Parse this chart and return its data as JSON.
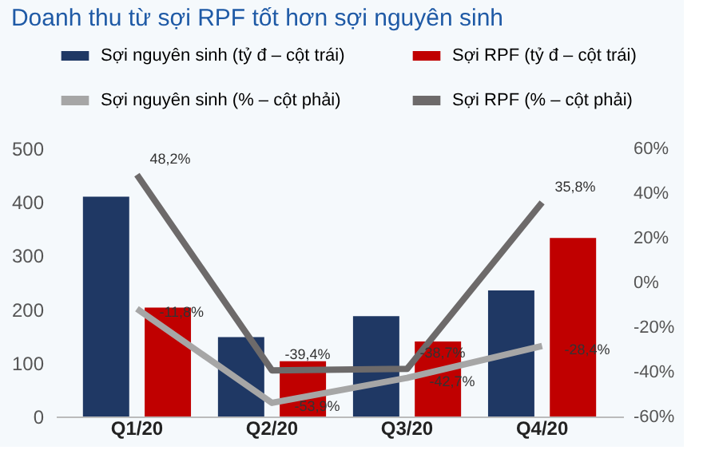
{
  "chart_data": {
    "type": "bar",
    "title": "Doanh thu từ sợi RPF tốt hơn sợi nguyên sinh",
    "categories": [
      "Q1/20",
      "Q2/20",
      "Q3/20",
      "Q4/20"
    ],
    "series": [
      {
        "name": "Sợi nguyên sinh (tỷ đ – cột trái)",
        "color": "#1f3864",
        "values": [
          410,
          148,
          187,
          235
        ]
      },
      {
        "name": "Sợi RPF (tỷ đ – cột trái)",
        "color": "#c00000",
        "values": [
          203,
          103,
          140,
          333
        ]
      },
      {
        "name": "Sợi nguyên sinh (% – cột phải)",
        "type": "line",
        "axis": "y2",
        "color": "#a6a6a6",
        "values": [
          -11.8,
          -53.9,
          -42.7,
          -28.4
        ],
        "value_labels": [
          "-11,8%",
          "-53,9%",
          "-42,7%",
          "-28,4%"
        ]
      },
      {
        "name": "Sợi RPF (% – cột phải)",
        "type": "line",
        "axis": "y2",
        "color": "#6d6a6a",
        "values": [
          48.2,
          -39.4,
          -38.7,
          35.8
        ],
        "value_labels": [
          "48,2%",
          "-39,4%",
          "-38,7%",
          "35,8%"
        ]
      }
    ],
    "ylim": [
      0,
      500
    ],
    "yticks": [
      0,
      100,
      200,
      300,
      400,
      500
    ],
    "y2lim": [
      -60,
      60
    ],
    "y2ticks": [
      {
        "value": -60,
        "label": "-60%"
      },
      {
        "value": -40,
        "label": "-40%"
      },
      {
        "value": -20,
        "label": "-20%"
      },
      {
        "value": 0,
        "label": "0%"
      },
      {
        "value": 20,
        "label": "20%"
      },
      {
        "value": 40,
        "label": "40%"
      },
      {
        "value": 60,
        "label": "60%"
      }
    ],
    "legend": "top",
    "grid": false
  }
}
